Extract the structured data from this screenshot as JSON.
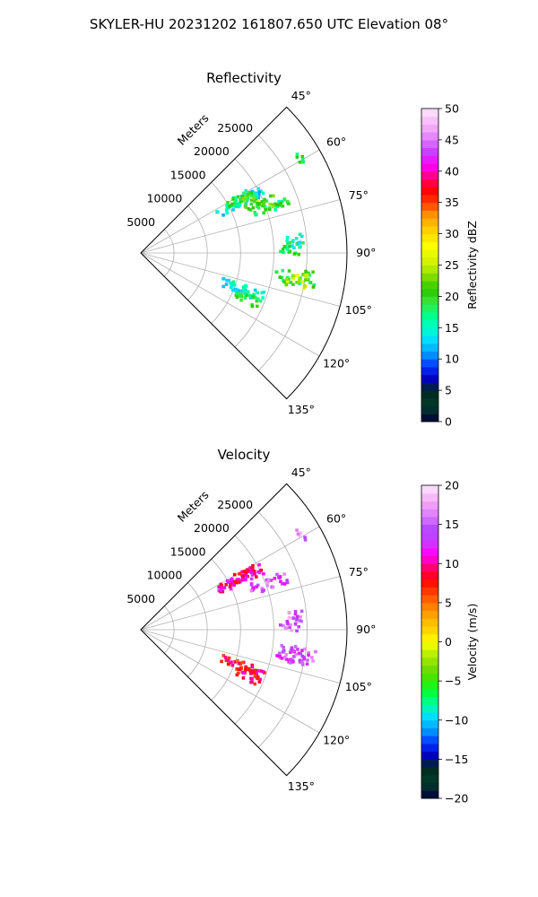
{
  "figure": {
    "suptitle": "SKYLER-HU  20231202  161807.650 UTC Elevation 08°"
  },
  "chart_data": [
    {
      "type": "heatmap",
      "title": "Reflectivity",
      "radial_label": "Meters",
      "radial_ticks": [
        "5000",
        "10000",
        "15000",
        "20000",
        "25000"
      ],
      "radial_values": [
        5000,
        10000,
        15000,
        20000,
        25000
      ],
      "rmax": 31000,
      "angle_ticks": [
        "45°",
        "60°",
        "75°",
        "90°",
        "105°",
        "120°",
        "135°"
      ],
      "angle_values": [
        45,
        60,
        75,
        90,
        105,
        120,
        135
      ],
      "colorbar": {
        "label": "Reflectivity dBZ",
        "min": 0,
        "max": 50,
        "ticks": [
          "0",
          "5",
          "10",
          "15",
          "20",
          "25",
          "30",
          "35",
          "40",
          "45",
          "50"
        ],
        "tick_values": [
          0,
          5,
          10,
          15,
          20,
          25,
          30,
          35,
          40,
          45,
          50
        ]
      },
      "echo_regions": [
        {
          "az": 63,
          "r": [
            13000,
            20500
          ],
          "value": 14
        },
        {
          "az": 62,
          "r": [
            14500,
            19500
          ],
          "value": 18
        },
        {
          "az": 64,
          "r": [
            16500,
            19000
          ],
          "value": 21
        },
        {
          "az": 70,
          "r": [
            17500,
            23500
          ],
          "value": 18
        },
        {
          "az": 69,
          "r": [
            19000,
            22000
          ],
          "value": 23
        },
        {
          "az": 60,
          "r": [
            27500,
            28500
          ],
          "value": 18
        },
        {
          "az": 88,
          "r": [
            21000,
            24000
          ],
          "value": 19
        },
        {
          "az": 86,
          "r": [
            22000,
            24500
          ],
          "value": 16
        },
        {
          "az": 99,
          "r": [
            20500,
            26500
          ],
          "value": 19
        },
        {
          "az": 100,
          "r": [
            22000,
            25500
          ],
          "value": 24
        },
        {
          "az": 110,
          "r": [
            13000,
            20000
          ],
          "value": 15
        },
        {
          "az": 113,
          "r": [
            15500,
            19500
          ],
          "value": 19
        }
      ]
    },
    {
      "type": "heatmap",
      "title": "Velocity",
      "radial_label": "Meters",
      "radial_ticks": [
        "5000",
        "10000",
        "15000",
        "20000",
        "25000"
      ],
      "radial_values": [
        5000,
        10000,
        15000,
        20000,
        25000
      ],
      "rmax": 31000,
      "angle_ticks": [
        "45°",
        "60°",
        "75°",
        "90°",
        "105°",
        "120°",
        "135°"
      ],
      "angle_values": [
        45,
        60,
        75,
        90,
        105,
        120,
        135
      ],
      "colorbar": {
        "label": "Velocity (m/s)",
        "min": -20,
        "max": 20,
        "ticks": [
          "−20",
          "−15",
          "−10",
          "−5",
          "0",
          "5",
          "10",
          "15",
          "20"
        ],
        "tick_values": [
          -20,
          -15,
          -10,
          -5,
          0,
          5,
          10,
          15,
          20
        ]
      },
      "echo_regions": [
        {
          "az": 63,
          "r": [
            13000,
            20500
          ],
          "value": 11
        },
        {
          "az": 62,
          "r": [
            14500,
            19500
          ],
          "value": 10
        },
        {
          "az": 70,
          "r": [
            17500,
            23500
          ],
          "value": 14
        },
        {
          "az": 60,
          "r": [
            27500,
            28500
          ],
          "value": 16
        },
        {
          "az": 88,
          "r": [
            21000,
            24000
          ],
          "value": 16
        },
        {
          "az": 86,
          "r": [
            22000,
            24500
          ],
          "value": 15
        },
        {
          "az": 99,
          "r": [
            20500,
            26500
          ],
          "value": 14
        },
        {
          "az": 100,
          "r": [
            22000,
            25500
          ],
          "value": 14
        },
        {
          "az": 110,
          "r": [
            13000,
            20000
          ],
          "value": 8
        },
        {
          "az": 113,
          "r": [
            15500,
            19500
          ],
          "value": 9
        }
      ]
    }
  ]
}
